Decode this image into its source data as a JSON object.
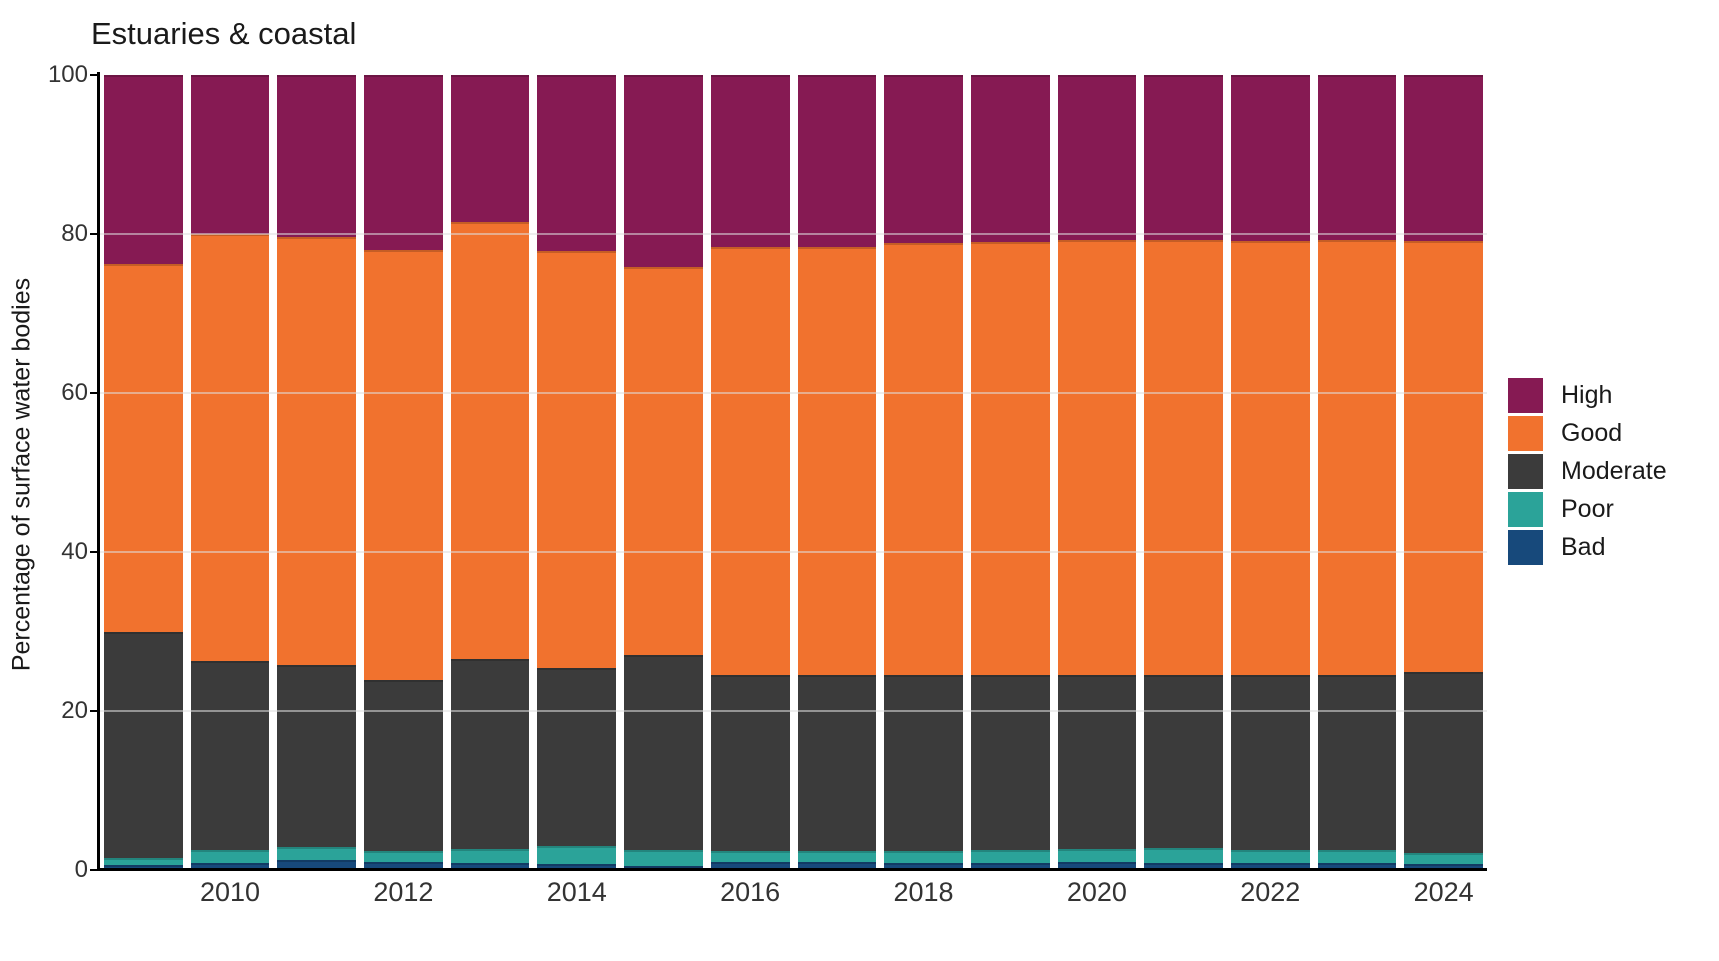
{
  "title": "Estuaries & coastal",
  "y_axis_title": "Percentage of surface water bodies",
  "legend": {
    "position": "right",
    "items": [
      {
        "label": "High",
        "color": "#861a53"
      },
      {
        "label": "Good",
        "color": "#f1722e"
      },
      {
        "label": "Moderate",
        "color": "#3b3b3b"
      },
      {
        "label": "Poor",
        "color": "#2ba399"
      },
      {
        "label": "Bad",
        "color": "#17497b"
      }
    ]
  },
  "chart_data": {
    "type": "bar",
    "stacked": true,
    "title": "Estuaries & coastal",
    "xlabel": "",
    "ylabel": "Percentage of surface water bodies",
    "ylim": [
      0,
      100
    ],
    "yticks": [
      "0",
      "20",
      "40",
      "60",
      "80",
      "100"
    ],
    "xtick_labels": [
      "2010",
      "2012",
      "2014",
      "2016",
      "2018",
      "2020",
      "2022",
      "2024"
    ],
    "xtick_years": [
      2010,
      2012,
      2014,
      2016,
      2018,
      2020,
      2022,
      2024
    ],
    "grid": "faint horizontal lines at 20/40/60/80 drawn over bars",
    "legend_position": "right",
    "categories": [
      2009,
      2010,
      2011,
      2012,
      2013,
      2014,
      2015,
      2016,
      2017,
      2018,
      2019,
      2020,
      2021,
      2022,
      2023,
      2024
    ],
    "stack_order_bottom_to_top": [
      "Bad",
      "Poor",
      "Moderate",
      "Good",
      "High"
    ],
    "series": [
      {
        "name": "Bad",
        "color": "#17497b",
        "values": [
          0.6,
          0.9,
          1.3,
          1.0,
          0.9,
          0.8,
          0.5,
          1.0,
          1.0,
          0.9,
          0.9,
          1.0,
          0.9,
          0.9,
          0.9,
          0.8
        ]
      },
      {
        "name": "Poor",
        "color": "#2ba399",
        "values": [
          0.9,
          1.6,
          1.6,
          1.4,
          1.8,
          2.2,
          2.0,
          1.4,
          1.4,
          1.5,
          1.6,
          1.6,
          1.9,
          1.6,
          1.6,
          1.4
        ]
      },
      {
        "name": "Moderate",
        "color": "#3b3b3b",
        "values": [
          28.4,
          23.8,
          22.9,
          21.5,
          23.8,
          22.4,
          24.5,
          22.1,
          22.1,
          22.1,
          22.0,
          21.9,
          21.7,
          22.0,
          22.0,
          22.7
        ]
      },
      {
        "name": "Good",
        "color": "#f1722e",
        "values": [
          46.3,
          53.7,
          53.8,
          54.1,
          55.0,
          52.5,
          48.9,
          53.9,
          53.9,
          54.4,
          54.5,
          54.7,
          54.7,
          54.6,
          54.7,
          54.2
        ]
      },
      {
        "name": "High",
        "color": "#861a53",
        "values": [
          23.8,
          20.0,
          20.4,
          22.0,
          18.5,
          22.1,
          24.1,
          21.6,
          21.6,
          21.1,
          21.0,
          20.8,
          20.8,
          20.9,
          20.8,
          20.9
        ]
      }
    ]
  }
}
